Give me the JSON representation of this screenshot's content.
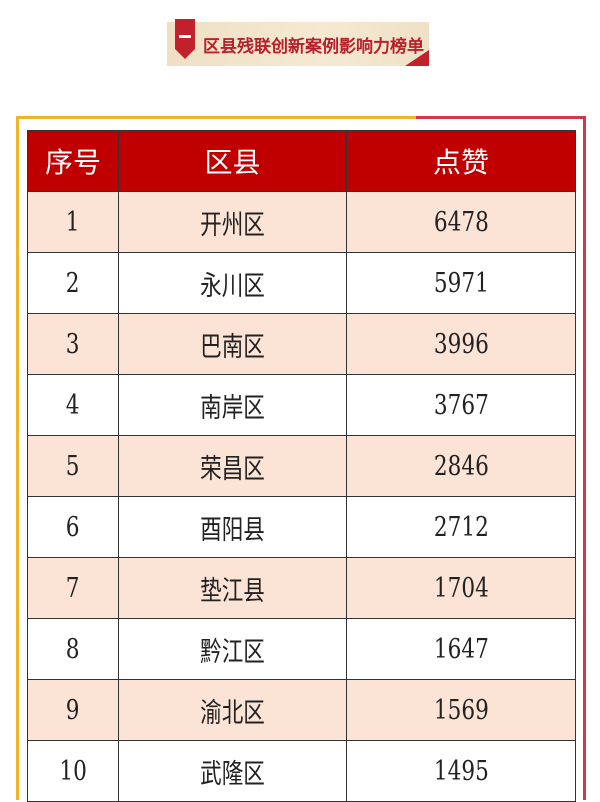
{
  "banner": {
    "title": "区县残联创新案例影响力榜单"
  },
  "colors": {
    "header_bg": "#c00000",
    "row_alt_bg": "#fbe3d6",
    "frame_yellow": "#f0b429",
    "frame_red": "#d3374a"
  },
  "table": {
    "columns": [
      "序号",
      "区县",
      "点赞"
    ],
    "rows": [
      [
        "1",
        "开州区",
        "6478"
      ],
      [
        "2",
        "永川区",
        "5971"
      ],
      [
        "3",
        "巴南区",
        "3996"
      ],
      [
        "4",
        "南岸区",
        "3767"
      ],
      [
        "5",
        "荣昌区",
        "2846"
      ],
      [
        "6",
        "酉阳县",
        "2712"
      ],
      [
        "7",
        "垫江县",
        "1704"
      ],
      [
        "8",
        "黔江区",
        "1647"
      ],
      [
        "9",
        "渝北区",
        "1569"
      ],
      [
        "10",
        "武隆区",
        "1495"
      ]
    ]
  }
}
